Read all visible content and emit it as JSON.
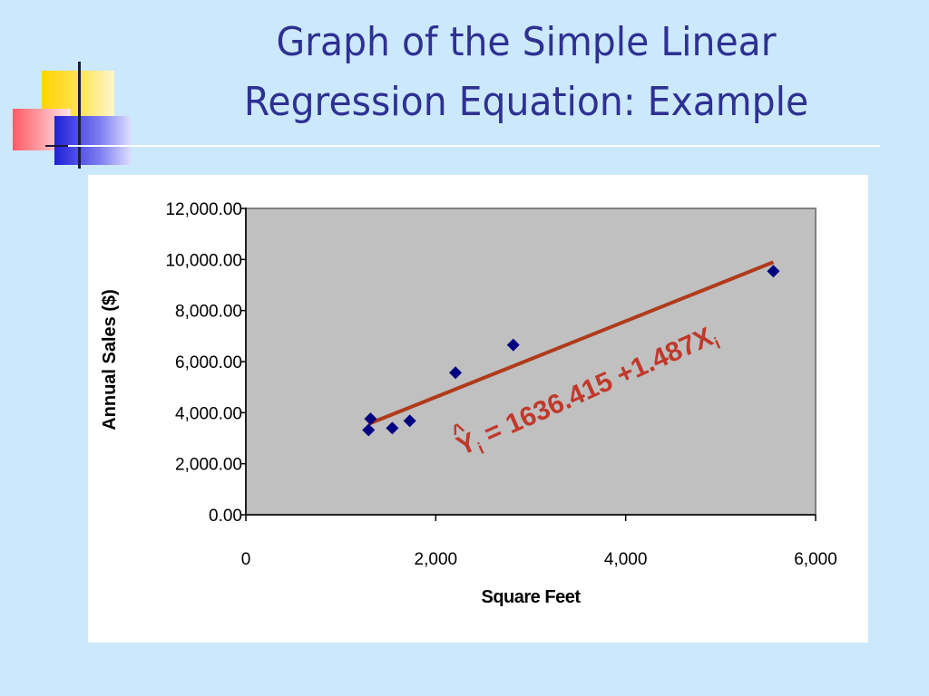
{
  "slide": {
    "title_line1": "Graph of the Simple Linear",
    "title_line2": "Regression Equation: Example"
  },
  "colors": {
    "background": "#cce8fb",
    "title": "#2e3192",
    "plot_area": "#c0c0c0",
    "points": "#000080",
    "regression_line": "#b03a1a",
    "equation": "#c0392b"
  },
  "chart_data": {
    "type": "scatter",
    "xlabel": "Square Feet",
    "ylabel": "Annual Sales ($)",
    "xlim": [
      0,
      6000
    ],
    "ylim": [
      0,
      12000
    ],
    "x_ticks": [
      "0",
      "2,000",
      "4,000",
      "6,000"
    ],
    "y_ticks": [
      "0.00",
      "2,000.00",
      "4,000.00",
      "6,000.00",
      "8,000.00",
      "10,000.00",
      "12,000.00"
    ],
    "grid": false,
    "series": [
      {
        "points": [
          {
            "x": 1726,
            "y": 3681
          },
          {
            "x": 1542,
            "y": 3395
          },
          {
            "x": 2816,
            "y": 6653
          },
          {
            "x": 5555,
            "y": 9543
          },
          {
            "x": 1292,
            "y": 3318
          },
          {
            "x": 2208,
            "y": 5563
          },
          {
            "x": 1313,
            "y": 3760
          }
        ]
      }
    ],
    "regression": {
      "intercept": 1636.415,
      "slope": 1.487,
      "x_range": [
        1292,
        5555
      ],
      "equation": {
        "hat": "^",
        "y": "Y",
        "y_sub": "i",
        "body": " = 1636.415 +1.487",
        "x": "X",
        "x_sub": "i"
      }
    }
  }
}
